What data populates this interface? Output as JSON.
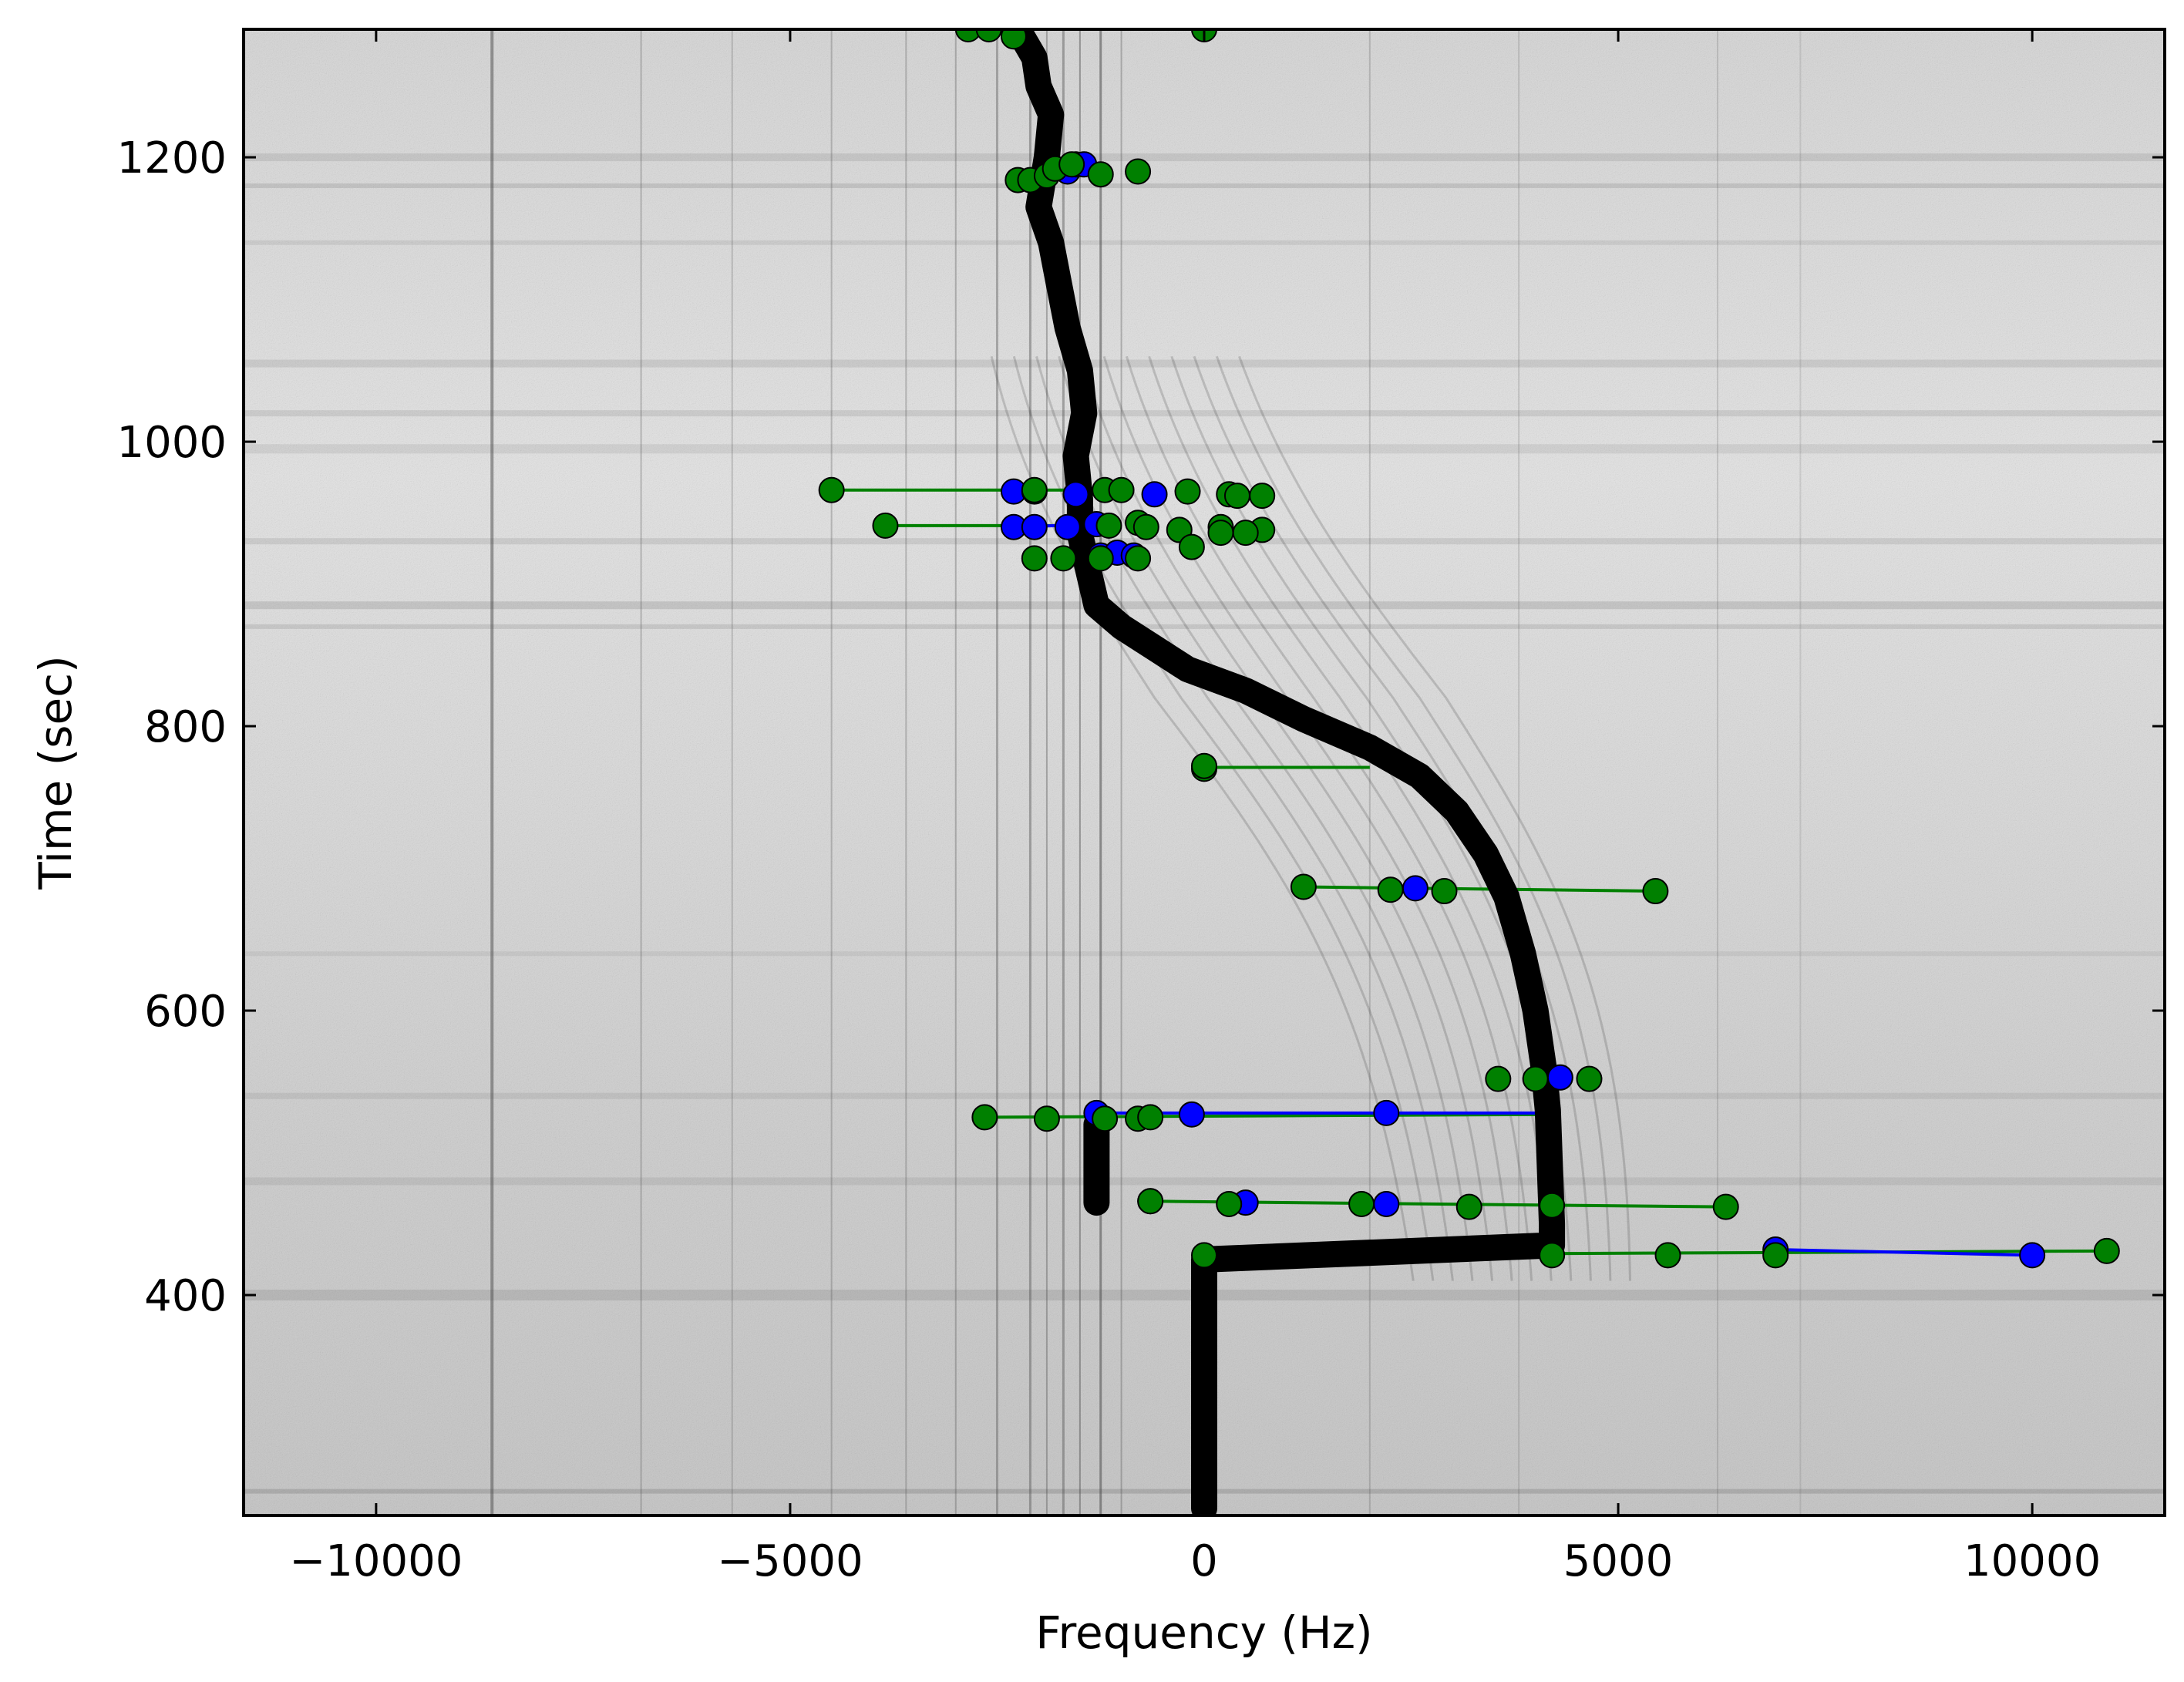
{
  "chart_data": {
    "type": "scatter",
    "title": "",
    "xlabel": "Frequency (Hz)",
    "ylabel": "Time (sec)",
    "xlim": [
      -11600,
      11600
    ],
    "ylim": [
      245,
      1290
    ],
    "grid": false,
    "legend": "none",
    "background": "spectrogram (grayscale noise with black Doppler signal traces)",
    "x_ticks": [
      {
        "value": -10000,
        "label": "−10000"
      },
      {
        "value": -5000,
        "label": "−5000"
      },
      {
        "value": 0,
        "label": "0"
      },
      {
        "value": 5000,
        "label": "5000"
      },
      {
        "value": 10000,
        "label": "10000"
      }
    ],
    "y_ticks": [
      {
        "value": 400,
        "label": "400"
      },
      {
        "value": 600,
        "label": "600"
      },
      {
        "value": 800,
        "label": "800"
      },
      {
        "value": 1000,
        "label": "1000"
      },
      {
        "value": 1200,
        "label": "1200"
      }
    ],
    "colors": {
      "track": "#000000",
      "blue_points": "#0000ff",
      "green_points": "#008000",
      "marker_edge": "#000000",
      "spectrogram_base": "#d9d9d9"
    },
    "series": [
      {
        "style": "thick-black-track",
        "color": "#000000",
        "points": [
          [
            0,
            250
          ],
          [
            0,
            300
          ],
          [
            0,
            350
          ],
          [
            0,
            400
          ],
          [
            0,
            425
          ],
          [
            4200,
            435
          ],
          [
            4200,
            450
          ],
          [
            4150,
            530
          ],
          [
            4100,
            560
          ],
          [
            4000,
            600
          ],
          [
            3850,
            640
          ],
          [
            3650,
            680
          ],
          [
            3400,
            710
          ],
          [
            3050,
            740
          ],
          [
            2600,
            765
          ],
          [
            2000,
            785
          ],
          [
            1200,
            805
          ],
          [
            500,
            825
          ],
          [
            -200,
            840
          ],
          [
            -600,
            855
          ],
          [
            -1000,
            870
          ],
          [
            -1300,
            885
          ],
          [
            -1400,
            910
          ],
          [
            -1500,
            935
          ],
          [
            -1500,
            960
          ],
          [
            -1550,
            990
          ],
          [
            -1450,
            1020
          ],
          [
            -1500,
            1050
          ],
          [
            -1650,
            1080
          ],
          [
            -1750,
            1110
          ],
          [
            -1850,
            1140
          ],
          [
            -2000,
            1165
          ],
          [
            -1900,
            1200
          ],
          [
            -1850,
            1230
          ],
          [
            -2000,
            1250
          ],
          [
            -2050,
            1270
          ],
          [
            -2200,
            1285
          ]
        ]
      },
      {
        "style": "thick-black-track",
        "color": "#000000",
        "points": [
          [
            -1300,
            465
          ],
          [
            -1300,
            480
          ],
          [
            -1300,
            500
          ],
          [
            -1300,
            520
          ]
        ]
      },
      {
        "style": "blue-markers",
        "color": "#0000ff",
        "points": [
          [
            6900,
            432
          ],
          [
            10000,
            428
          ],
          [
            -650,
            466
          ],
          [
            500,
            465
          ],
          [
            2200,
            464
          ],
          [
            -1300,
            528
          ],
          [
            -150,
            527
          ],
          [
            2200,
            528
          ],
          [
            4300,
            553
          ],
          [
            2550,
            686
          ],
          [
            -2300,
            965
          ],
          [
            -2050,
            965
          ],
          [
            -1550,
            963
          ],
          [
            -600,
            963
          ],
          [
            -2300,
            940
          ],
          [
            -2050,
            940
          ],
          [
            -1650,
            940
          ],
          [
            -1300,
            942
          ],
          [
            -1250,
            920
          ],
          [
            -1050,
            922
          ],
          [
            -850,
            920
          ],
          [
            -1650,
            1190
          ],
          [
            -1550,
            1195
          ],
          [
            -1450,
            1195
          ]
        ]
      },
      {
        "style": "green-markers",
        "color": "#008000",
        "points": [
          [
            0,
            428
          ],
          [
            4200,
            428
          ],
          [
            5600,
            428
          ],
          [
            6900,
            428
          ],
          [
            10900,
            431
          ],
          [
            -650,
            466
          ],
          [
            300,
            464
          ],
          [
            1900,
            464
          ],
          [
            3200,
            462
          ],
          [
            4200,
            463
          ],
          [
            6300,
            462
          ],
          [
            -2650,
            525
          ],
          [
            -1900,
            524
          ],
          [
            -1200,
            524
          ],
          [
            -800,
            524
          ],
          [
            -650,
            525
          ],
          [
            3550,
            552
          ],
          [
            4000,
            552
          ],
          [
            4650,
            552
          ],
          [
            1200,
            687
          ],
          [
            2250,
            685
          ],
          [
            2900,
            684
          ],
          [
            5450,
            684
          ],
          [
            0,
            770
          ],
          [
            0,
            772
          ],
          [
            -4500,
            966
          ],
          [
            -2050,
            966
          ],
          [
            -1200,
            966
          ],
          [
            -1000,
            966
          ],
          [
            -200,
            965
          ],
          [
            300,
            963
          ],
          [
            400,
            962
          ],
          [
            700,
            962
          ],
          [
            -3850,
            941
          ],
          [
            -1150,
            941
          ],
          [
            -800,
            943
          ],
          [
            -700,
            940
          ],
          [
            -300,
            938
          ],
          [
            200,
            940
          ],
          [
            700,
            938
          ],
          [
            -2050,
            918
          ],
          [
            -1700,
            918
          ],
          [
            -1250,
            918
          ],
          [
            -800,
            918
          ],
          [
            -150,
            926
          ],
          [
            200,
            936
          ],
          [
            500,
            936
          ],
          [
            -2850,
            1290
          ],
          [
            -2600,
            1290
          ],
          [
            -2300,
            1285
          ],
          [
            0,
            1290
          ],
          [
            -2250,
            1184
          ],
          [
            -2100,
            1184
          ],
          [
            -1900,
            1187
          ],
          [
            -1800,
            1192
          ],
          [
            -1600,
            1195
          ],
          [
            -1250,
            1188
          ],
          [
            -800,
            1190
          ]
        ]
      }
    ],
    "connector_lines": [
      {
        "color": "#008000",
        "from": [
          0,
          428
        ],
        "to": [
          10900,
          431
        ]
      },
      {
        "color": "#0000ff",
        "from": [
          6900,
          432
        ],
        "to": [
          10000,
          428
        ]
      },
      {
        "color": "#008000",
        "from": [
          -650,
          466
        ],
        "to": [
          6300,
          462
        ]
      },
      {
        "color": "#008000",
        "from": [
          -2650,
          525
        ],
        "to": [
          4150,
          527
        ]
      },
      {
        "color": "#0000ff",
        "from": [
          -1300,
          528
        ],
        "to": [
          4150,
          528
        ]
      },
      {
        "color": "#008000",
        "from": [
          1200,
          687
        ],
        "to": [
          5450,
          684
        ]
      },
      {
        "color": "#008000",
        "from": [
          0,
          771
        ],
        "to": [
          2000,
          771
        ]
      },
      {
        "color": "#008000",
        "from": [
          -4500,
          966
        ],
        "to": [
          -1500,
          966
        ]
      },
      {
        "color": "#008000",
        "from": [
          -3850,
          941
        ],
        "to": [
          -1400,
          941
        ]
      },
      {
        "color": "#0000ff",
        "from": [
          -2300,
          940
        ],
        "to": [
          -1300,
          942
        ]
      },
      {
        "color": "#008000",
        "from": [
          -2250,
          1184
        ],
        "to": [
          -1250,
          1188
        ]
      }
    ]
  }
}
